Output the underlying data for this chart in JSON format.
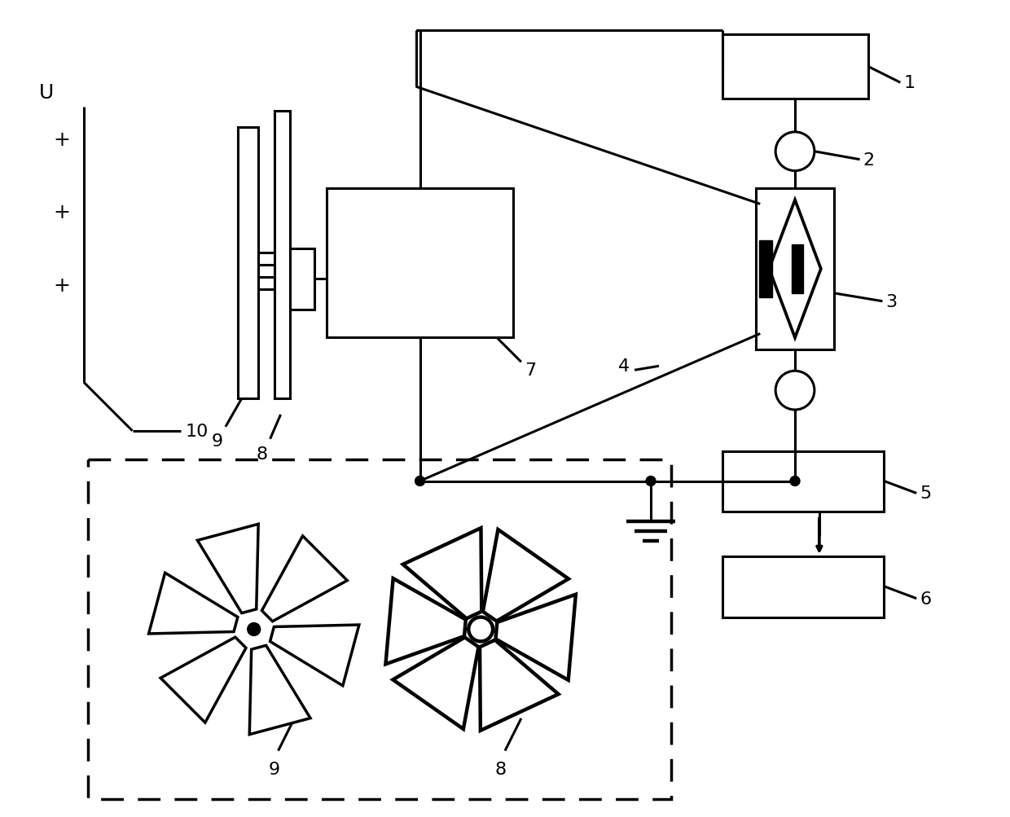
{
  "bg_color": "#ffffff",
  "line_color": "#000000",
  "lw": 2.2,
  "fig_width": 12.4,
  "fig_height": 10.04
}
